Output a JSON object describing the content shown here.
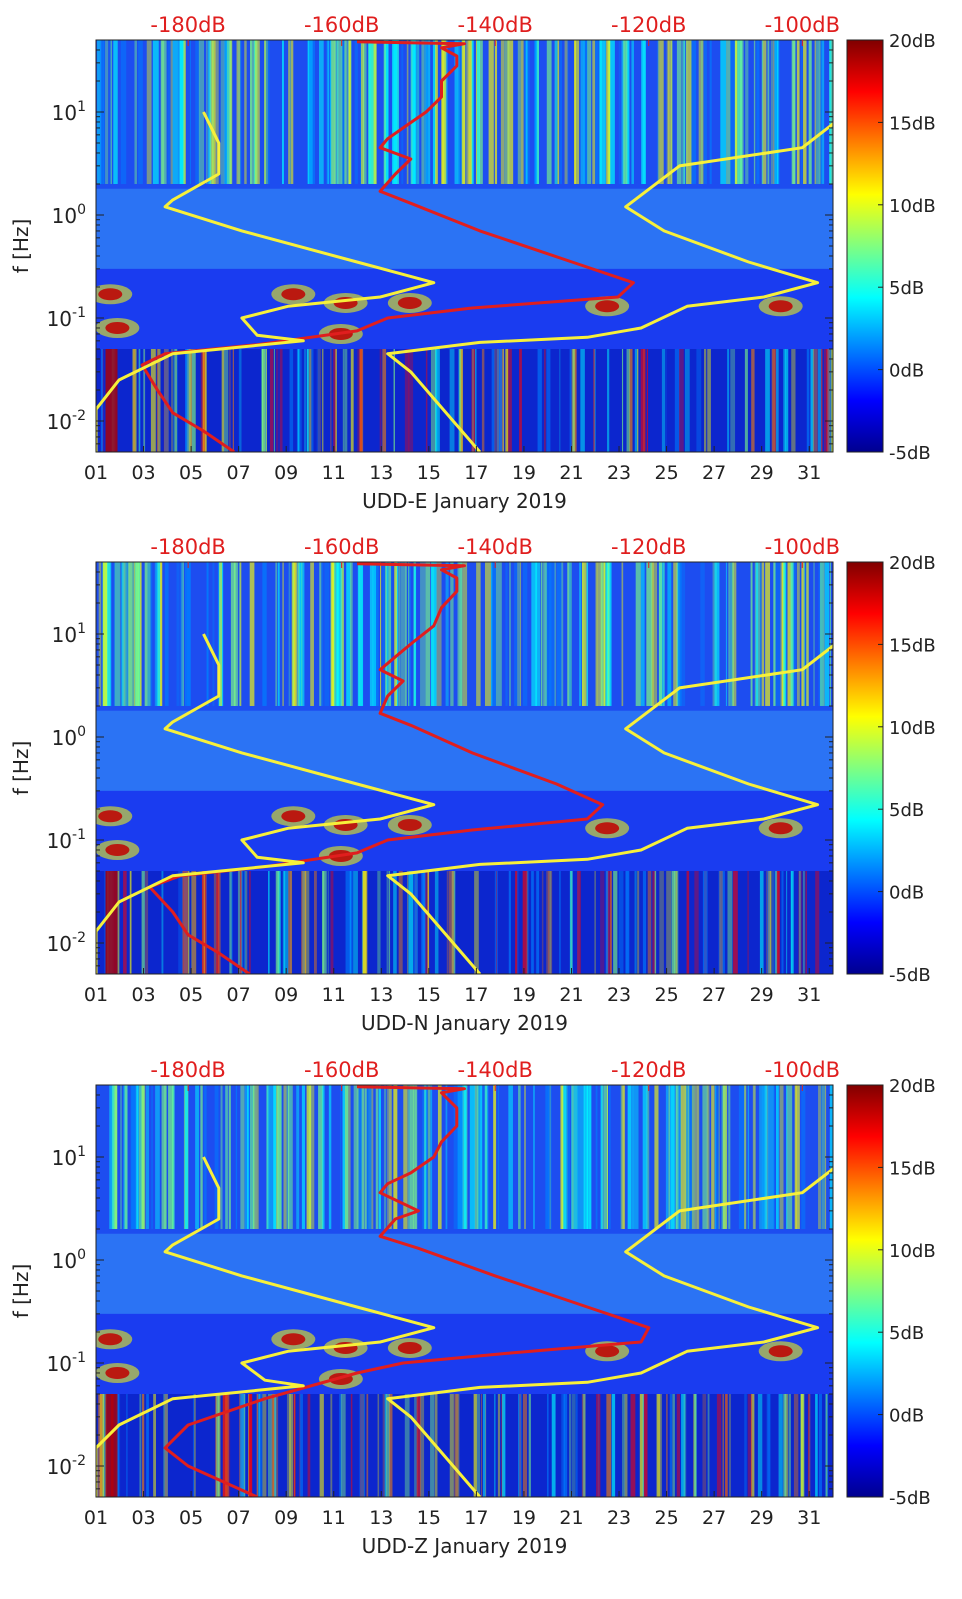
{
  "figure": {
    "panel_title_template": "January 2019",
    "y_axis_label": "f [Hz]"
  },
  "colormap": {
    "stops": [
      "#00008f",
      "#0000ff",
      "#0080ff",
      "#00ffff",
      "#80ff80",
      "#ffff00",
      "#ff8000",
      "#ff0000",
      "#800000"
    ],
    "label_color": "#222222"
  },
  "colors": {
    "red_curve": "#e01e1e",
    "yellow_curve": "#f7f03a",
    "top_axis_text": "#e01e1e"
  },
  "chart_data": [
    {
      "type": "heatmap",
      "xlabel": "UDD-E January 2019",
      "ylabel": "f [Hz]",
      "x_ticks": [
        "01",
        "03",
        "05",
        "07",
        "09",
        "11",
        "13",
        "15",
        "17",
        "19",
        "21",
        "23",
        "25",
        "27",
        "29",
        "31"
      ],
      "x_tick_values": [
        1,
        3,
        5,
        7,
        9,
        11,
        13,
        15,
        17,
        19,
        21,
        23,
        25,
        27,
        29,
        31
      ],
      "xlim": [
        1,
        32
      ],
      "y_scale": "log",
      "y_ticks": [
        "10^{-2}",
        "10^{-1}",
        "10^{0}",
        "10^{1}"
      ],
      "y_tick_values": [
        0.01,
        0.1,
        1,
        10
      ],
      "ylim": [
        0.005,
        50
      ],
      "colorbar": {
        "ticks": [
          "-5dB",
          "0dB",
          "5dB",
          "10dB",
          "15dB",
          "20dB"
        ],
        "values": [
          -5,
          0,
          5,
          10,
          15,
          20
        ],
        "range": [
          -5,
          20
        ]
      },
      "top_axis": {
        "ticks": [
          "-180dB",
          "-160dB",
          "-140dB",
          "-120dB",
          "-100dB"
        ],
        "values": [
          -180,
          -160,
          -140,
          -120,
          -100
        ],
        "range": [
          -192,
          -96
        ]
      },
      "series": [
        {
          "color": "red",
          "points": [
            [
              -174,
              0.005
            ],
            [
              -178,
              0.008
            ],
            [
              -182,
              0.012
            ],
            [
              -184,
              0.02
            ],
            [
              -186,
              0.035
            ],
            [
              -183,
              0.045
            ],
            [
              -171,
              0.055
            ],
            [
              -158,
              0.075
            ],
            [
              -154,
              0.1
            ],
            [
              -143,
              0.125
            ],
            [
              -124,
              0.16
            ],
            [
              -122,
              0.22
            ],
            [
              -130,
              0.35
            ],
            [
              -142,
              0.7
            ],
            [
              -151,
              1.3
            ],
            [
              -155,
              1.7
            ],
            [
              -153,
              2.5
            ],
            [
              -151,
              3.5
            ],
            [
              -155,
              4.5
            ],
            [
              -154,
              5.5
            ],
            [
              -152,
              7
            ],
            [
              -149,
              10
            ],
            [
              -147,
              14
            ],
            [
              -147,
              20
            ],
            [
              -145,
              28
            ],
            [
              -145,
              35
            ],
            [
              -147,
              42
            ],
            [
              -144,
              46
            ],
            [
              -158,
              48
            ]
          ]
        },
        {
          "color": "yellow",
          "points": [
            [
              -192,
              0.005
            ],
            [
              -192,
              0.013
            ],
            [
              -189,
              0.025
            ],
            [
              -182,
              0.045
            ],
            [
              -165,
              0.06
            ],
            [
              -171,
              0.068
            ],
            [
              -173,
              0.1
            ],
            [
              -167,
              0.13
            ],
            [
              -155,
              0.16
            ],
            [
              -148,
              0.22
            ],
            [
              -158,
              0.35
            ],
            [
              -173,
              0.7
            ],
            [
              -183,
              1.2
            ],
            [
              -182,
              1.4
            ],
            [
              -176,
              2.5
            ],
            [
              -176,
              5
            ],
            [
              -178,
              10
            ]
          ]
        },
        {
          "color": "yellow",
          "points": [
            [
              -142,
              0.005
            ],
            [
              -151,
              0.03
            ],
            [
              -154,
              0.045
            ],
            [
              -142,
              0.058
            ],
            [
              -128,
              0.065
            ],
            [
              -121,
              0.08
            ],
            [
              -115,
              0.13
            ],
            [
              -105,
              0.16
            ],
            [
              -98,
              0.22
            ],
            [
              -107,
              0.35
            ],
            [
              -118,
              0.7
            ],
            [
              -123,
              1.2
            ],
            [
              -116,
              3
            ],
            [
              -100,
              4.5
            ],
            [
              -94,
              10
            ]
          ]
        }
      ]
    },
    {
      "type": "heatmap",
      "xlabel": "UDD-N January 2019",
      "ylabel": "f [Hz]",
      "x_ticks": [
        "01",
        "03",
        "05",
        "07",
        "09",
        "11",
        "13",
        "15",
        "17",
        "19",
        "21",
        "23",
        "25",
        "27",
        "29",
        "31"
      ],
      "x_tick_values": [
        1,
        3,
        5,
        7,
        9,
        11,
        13,
        15,
        17,
        19,
        21,
        23,
        25,
        27,
        29,
        31
      ],
      "xlim": [
        1,
        32
      ],
      "y_scale": "log",
      "y_ticks": [
        "10^{-2}",
        "10^{-1}",
        "10^{0}",
        "10^{1}"
      ],
      "y_tick_values": [
        0.01,
        0.1,
        1,
        10
      ],
      "ylim": [
        0.005,
        50
      ],
      "colorbar": {
        "ticks": [
          "-5dB",
          "0dB",
          "5dB",
          "10dB",
          "15dB",
          "20dB"
        ],
        "values": [
          -5,
          0,
          5,
          10,
          15,
          20
        ],
        "range": [
          -5,
          20
        ]
      },
      "top_axis": {
        "ticks": [
          "-180dB",
          "-160dB",
          "-140dB",
          "-120dB",
          "-100dB"
        ],
        "values": [
          -180,
          -160,
          -140,
          -120,
          -100
        ],
        "range": [
          -192,
          -96
        ]
      },
      "series": [
        {
          "color": "red",
          "points": [
            [
              -172,
              0.005
            ],
            [
              -176,
              0.008
            ],
            [
              -180,
              0.012
            ],
            [
              -182,
              0.02
            ],
            [
              -185,
              0.035
            ],
            [
              -181,
              0.045
            ],
            [
              -170,
              0.055
            ],
            [
              -158,
              0.075
            ],
            [
              -154,
              0.1
            ],
            [
              -143,
              0.125
            ],
            [
              -128,
              0.16
            ],
            [
              -126,
              0.22
            ],
            [
              -132,
              0.35
            ],
            [
              -143,
              0.7
            ],
            [
              -151,
              1.3
            ],
            [
              -155,
              1.7
            ],
            [
              -154,
              2.5
            ],
            [
              -152,
              3.5
            ],
            [
              -155,
              4.5
            ],
            [
              -153,
              6
            ],
            [
              -151,
              8
            ],
            [
              -148,
              12
            ],
            [
              -147,
              18
            ],
            [
              -145,
              26
            ],
            [
              -145,
              35
            ],
            [
              -147,
              42
            ],
            [
              -144,
              46
            ],
            [
              -158,
              48
            ]
          ]
        },
        {
          "color": "yellow",
          "points": [
            [
              -192,
              0.005
            ],
            [
              -192,
              0.013
            ],
            [
              -189,
              0.025
            ],
            [
              -182,
              0.045
            ],
            [
              -165,
              0.06
            ],
            [
              -171,
              0.068
            ],
            [
              -173,
              0.1
            ],
            [
              -167,
              0.13
            ],
            [
              -155,
              0.16
            ],
            [
              -148,
              0.22
            ],
            [
              -158,
              0.35
            ],
            [
              -173,
              0.7
            ],
            [
              -183,
              1.2
            ],
            [
              -182,
              1.4
            ],
            [
              -176,
              2.5
            ],
            [
              -176,
              5
            ],
            [
              -178,
              10
            ]
          ]
        },
        {
          "color": "yellow",
          "points": [
            [
              -142,
              0.005
            ],
            [
              -151,
              0.03
            ],
            [
              -154,
              0.045
            ],
            [
              -142,
              0.058
            ],
            [
              -128,
              0.065
            ],
            [
              -121,
              0.08
            ],
            [
              -115,
              0.13
            ],
            [
              -105,
              0.16
            ],
            [
              -98,
              0.22
            ],
            [
              -107,
              0.35
            ],
            [
              -118,
              0.7
            ],
            [
              -123,
              1.2
            ],
            [
              -116,
              3
            ],
            [
              -100,
              4.5
            ],
            [
              -94,
              10
            ]
          ]
        }
      ]
    },
    {
      "type": "heatmap",
      "xlabel": "UDD-Z January 2019",
      "ylabel": "f [Hz]",
      "x_ticks": [
        "01",
        "03",
        "05",
        "07",
        "09",
        "11",
        "13",
        "15",
        "17",
        "19",
        "21",
        "23",
        "25",
        "27",
        "29",
        "31"
      ],
      "x_tick_values": [
        1,
        3,
        5,
        7,
        9,
        11,
        13,
        15,
        17,
        19,
        21,
        23,
        25,
        27,
        29,
        31
      ],
      "xlim": [
        1,
        32
      ],
      "y_scale": "log",
      "y_ticks": [
        "10^{-2}",
        "10^{-1}",
        "10^{0}",
        "10^{1}"
      ],
      "y_tick_values": [
        0.01,
        0.1,
        1,
        10
      ],
      "ylim": [
        0.005,
        50
      ],
      "colorbar": {
        "ticks": [
          "-5dB",
          "0dB",
          "5dB",
          "10dB",
          "15dB",
          "20dB"
        ],
        "values": [
          -5,
          0,
          5,
          10,
          15,
          20
        ],
        "range": [
          -5,
          20
        ]
      },
      "top_axis": {
        "ticks": [
          "-180dB",
          "-160dB",
          "-140dB",
          "-120dB",
          "-100dB"
        ],
        "values": [
          -180,
          -160,
          -140,
          -120,
          -100
        ],
        "range": [
          -192,
          -96
        ]
      },
      "series": [
        {
          "color": "red",
          "points": [
            [
              -171,
              0.005
            ],
            [
              -180,
              0.01
            ],
            [
              -183,
              0.015
            ],
            [
              -180,
              0.025
            ],
            [
              -170,
              0.045
            ],
            [
              -158,
              0.08
            ],
            [
              -152,
              0.1
            ],
            [
              -138,
              0.125
            ],
            [
              -121,
              0.16
            ],
            [
              -120,
              0.22
            ],
            [
              -128,
              0.35
            ],
            [
              -140,
              0.7
            ],
            [
              -150,
              1.3
            ],
            [
              -155,
              1.7
            ],
            [
              -153,
              2.5
            ],
            [
              -150,
              3
            ],
            [
              -155,
              4.5
            ],
            [
              -154,
              5.5
            ],
            [
              -151,
              7
            ],
            [
              -148,
              10
            ],
            [
              -147,
              14
            ],
            [
              -145,
              20
            ],
            [
              -145,
              30
            ],
            [
              -147,
              42
            ],
            [
              -144,
              46
            ],
            [
              -158,
              48
            ]
          ]
        },
        {
          "color": "yellow",
          "points": [
            [
              -192,
              0.005
            ],
            [
              -192,
              0.015
            ],
            [
              -189,
              0.025
            ],
            [
              -182,
              0.045
            ],
            [
              -165,
              0.06
            ],
            [
              -170,
              0.068
            ],
            [
              -173,
              0.1
            ],
            [
              -167,
              0.13
            ],
            [
              -155,
              0.16
            ],
            [
              -148,
              0.22
            ],
            [
              -158,
              0.35
            ],
            [
              -173,
              0.7
            ],
            [
              -183,
              1.2
            ],
            [
              -182,
              1.4
            ],
            [
              -176,
              2.5
            ],
            [
              -176,
              5
            ],
            [
              -178,
              10
            ]
          ]
        },
        {
          "color": "yellow",
          "points": [
            [
              -142,
              0.005
            ],
            [
              -151,
              0.03
            ],
            [
              -154,
              0.045
            ],
            [
              -142,
              0.058
            ],
            [
              -128,
              0.065
            ],
            [
              -121,
              0.08
            ],
            [
              -115,
              0.13
            ],
            [
              -105,
              0.16
            ],
            [
              -98,
              0.22
            ],
            [
              -107,
              0.35
            ],
            [
              -118,
              0.7
            ],
            [
              -123,
              1.2
            ],
            [
              -116,
              3
            ],
            [
              -100,
              4.5
            ],
            [
              -94,
              10
            ]
          ]
        }
      ]
    }
  ]
}
